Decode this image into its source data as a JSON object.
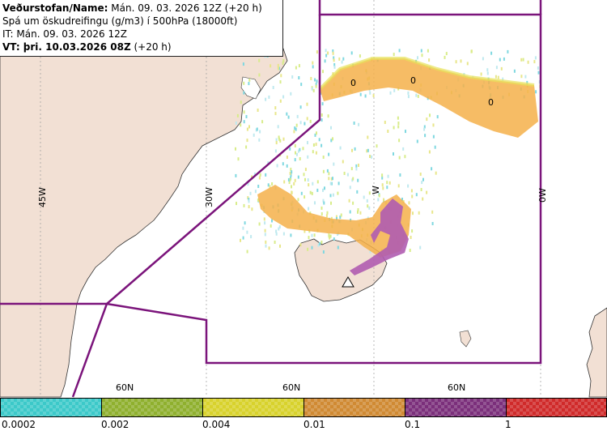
{
  "info": {
    "line1_bold": "Veðurstofan/Name:",
    "line1_rest": " Mán. 09. 03. 2026 12Z (+20 h)",
    "line2": "Spá um öskudreifingu (g/m3) í 500hPa (18000ft)",
    "line3": "IT: Mán. 09. 03. 2026 12Z",
    "line4_bold": "VT: þri. 10.03.2026 08Z",
    "line4_rest": " (+20 h)"
  },
  "map": {
    "longitude_labels": [
      "45W",
      "30W",
      "W",
      "0W"
    ],
    "latitude_labels": [
      "60N",
      "60N",
      "60N"
    ],
    "contour_labels": [
      "0",
      "0",
      "0"
    ],
    "colors": {
      "land": "#f2e0d4",
      "sea": "#ffffff",
      "boundary": "#7b147b",
      "grid": "#9a9a9a"
    }
  },
  "legend": {
    "levels": [
      {
        "label": "0.0002",
        "color": "#3cc9c9"
      },
      {
        "label": "0.002",
        "color": "#8fb02e"
      },
      {
        "label": "0.004",
        "color": "#d8d22c"
      },
      {
        "label": "0.01",
        "color": "#d08a33"
      },
      {
        "label": "0.1",
        "color": "#7b2f7b"
      },
      {
        "label": "1",
        "color": "#d02a2a"
      }
    ]
  }
}
